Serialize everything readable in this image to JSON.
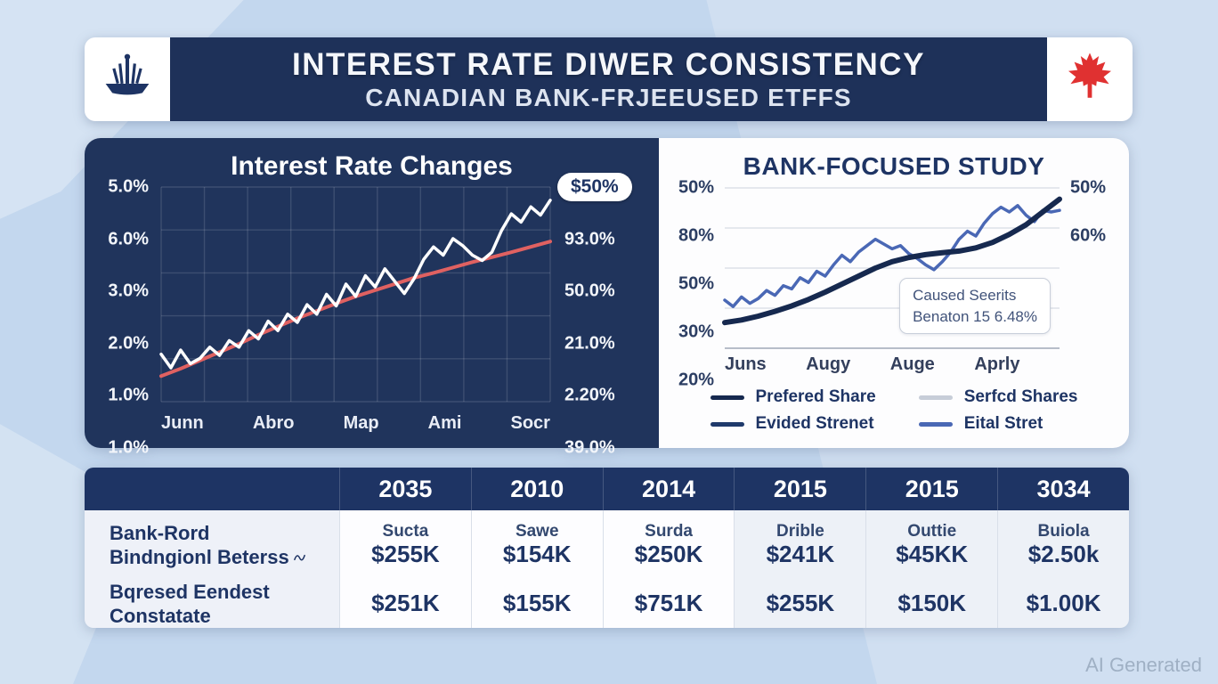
{
  "header": {
    "title": "INTEREST RATE DIWER CONSISTENCY",
    "subtitle": "CANADIAN BANK-FRJEEUSED ETFFS",
    "logo_icon": "bank-emblem-icon",
    "flag_icon": "canada-maple-leaf-icon"
  },
  "chart_data": [
    {
      "type": "line",
      "title": "Interest Rate Changes",
      "y_ticks_left": [
        "5.0%",
        "6.0%",
        "3.0%",
        "2.0%",
        "1.0%",
        "1.0%"
      ],
      "badge": "$50%",
      "y_ticks_right": [
        "93.0%",
        "50.0%",
        "21.0%",
        "2.20%",
        "39.0%"
      ],
      "categories": [
        "Junn",
        "Abro",
        "Map",
        "Ami",
        "Socr"
      ],
      "ylim": [
        0,
        5.2
      ],
      "grid": {
        "v": 9,
        "h": 5,
        "color": "rgba(255,255,255,0.13)"
      },
      "series": [
        {
          "name": "trend-line",
          "color": "#e06161",
          "width": 4,
          "values": [
            0.62,
            0.8,
            1.0,
            1.2,
            1.4,
            1.62,
            1.82,
            2.02,
            2.2,
            2.38,
            2.55,
            2.7,
            2.85,
            3.0,
            3.12,
            3.25,
            3.38,
            3.5,
            3.62,
            3.75,
            3.88
          ]
        },
        {
          "name": "rate-line",
          "color": "#ffffff",
          "width": 3.5,
          "values": [
            1.15,
            0.82,
            1.25,
            0.92,
            1.05,
            1.32,
            1.12,
            1.48,
            1.32,
            1.72,
            1.52,
            1.95,
            1.72,
            2.12,
            1.92,
            2.35,
            2.12,
            2.6,
            2.32,
            2.85,
            2.55,
            3.05,
            2.78,
            3.22,
            2.92,
            2.62,
            2.98,
            3.45,
            3.75,
            3.55,
            3.95,
            3.78,
            3.55,
            3.42,
            3.62,
            4.15,
            4.55,
            4.35,
            4.72,
            4.52,
            4.88
          ]
        }
      ]
    },
    {
      "type": "line",
      "title": "BANK-FOCUSED STUDY",
      "y_ticks_left": [
        "50%",
        "80%",
        "50%",
        "30%",
        "20%"
      ],
      "y_ticks_right": [
        "50%",
        "60%"
      ],
      "categories": [
        "Juns",
        "Augy",
        "Auge",
        "Aprly"
      ],
      "ylim": [
        18,
        68
      ],
      "grid": {
        "v": 0,
        "h": 4,
        "color": "#dde1e8"
      },
      "baseline_color": "#b7bdc9",
      "annotation": {
        "line1": "Caused Seerits",
        "line2": "Benaton 15 6.48%"
      },
      "legend": [
        {
          "label": "Prefered Share",
          "color": "#16294f"
        },
        {
          "label": "Serfcd Shares",
          "color": "#c7cdd8"
        },
        {
          "label": "Evided Strenet",
          "color": "#1f3a6b"
        },
        {
          "label": "Eital Stret",
          "color": "#4a68b5"
        }
      ],
      "series": [
        {
          "name": "eital-stret-line",
          "color": "#4a68b5",
          "width": 3.5,
          "values": [
            33,
            31,
            34,
            32,
            33.5,
            36,
            34.5,
            37.5,
            36.5,
            40,
            38.5,
            42,
            40.5,
            44,
            47,
            45,
            48,
            50,
            52,
            50.5,
            49,
            50,
            47.5,
            46,
            44,
            42.5,
            45,
            48,
            52,
            54.5,
            53,
            57,
            60,
            62,
            60.5,
            62.5,
            59.5,
            57.5,
            61,
            60.5,
            61
          ]
        },
        {
          "name": "prefered-share-line",
          "color": "#16294f",
          "width": 6,
          "values": [
            26,
            26.8,
            28,
            29.5,
            31.2,
            33.2,
            35.5,
            38,
            40.5,
            43,
            45,
            46.3,
            47.2,
            47.8,
            48.3,
            49.3,
            51,
            53.5,
            56.5,
            60.5,
            64.5
          ]
        }
      ]
    }
  ],
  "table": {
    "columns": [
      "",
      "2035",
      "2010",
      "2014",
      "2015",
      "2015",
      "3034"
    ],
    "rows": [
      {
        "label_line1": "Bank-Rord",
        "label_line2": "Bindngionl Beterss",
        "cells": [
          {
            "top": "Sucta",
            "value": "$255K"
          },
          {
            "top": "Sawe",
            "value": "$154K"
          },
          {
            "top": "Surda",
            "value": "$250K"
          },
          {
            "top": "Drible",
            "value": "$241K"
          },
          {
            "top": "Outtie",
            "value": "$45KK"
          },
          {
            "top": "Buiola",
            "value": "$2.50k"
          }
        ]
      },
      {
        "label_line1": "Bqresed Eendest",
        "label_line2": "Constatate",
        "cells": [
          {
            "value": "$251K"
          },
          {
            "value": "$155K"
          },
          {
            "value": "$751K"
          },
          {
            "value": "$255K"
          },
          {
            "value": "$150K"
          },
          {
            "value": "$1.00K"
          }
        ]
      }
    ]
  },
  "watermark": "AI Generated",
  "colors": {
    "navy": "#1e3464",
    "panel_navy": "#20345c",
    "accent_red": "#e06161",
    "flag_red": "#e03131",
    "background_blue": "#c3d7ee"
  }
}
